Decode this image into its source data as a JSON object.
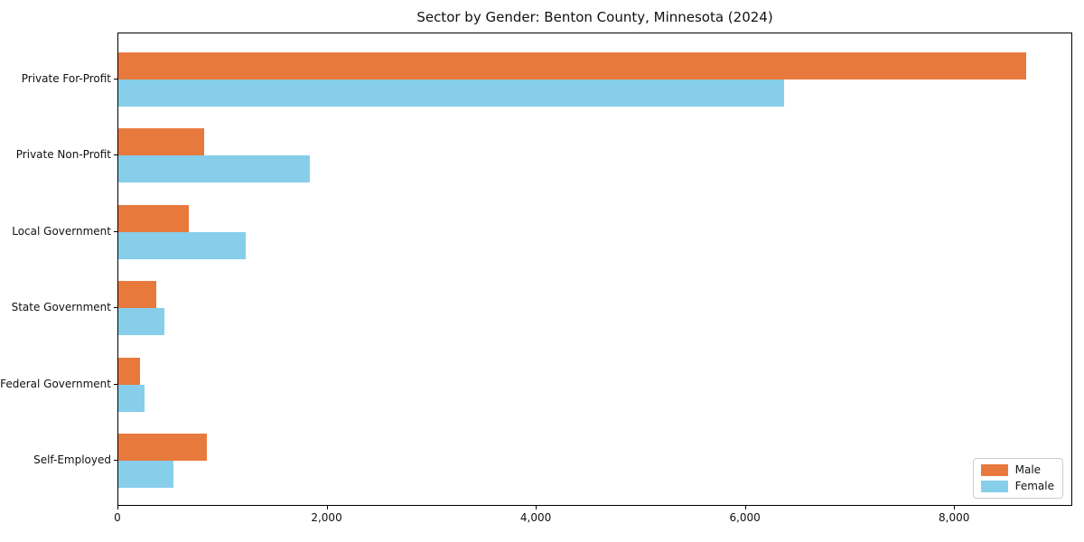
{
  "title": "Sector by Gender: Benton County, Minnesota (2024)",
  "colors": {
    "male": "#e8793d",
    "female": "#87ceeb",
    "spine": "#000000",
    "legend_border": "#cccccc",
    "background": "#ffffff"
  },
  "chart_data": {
    "type": "bar",
    "orientation": "horizontal",
    "title": "Sector by Gender: Benton County, Minnesota (2024)",
    "categories": [
      "Private For-Profit",
      "Private Non-Profit",
      "Local Government",
      "State Government",
      "Federal Government",
      "Self-Employed"
    ],
    "series": [
      {
        "name": "Male",
        "color": "#e8793d",
        "values": [
          8685,
          820,
          670,
          360,
          205,
          850
        ]
      },
      {
        "name": "Female",
        "color": "#87ceeb",
        "values": [
          6370,
          1830,
          1215,
          440,
          250,
          530
        ]
      }
    ],
    "xlabel": "",
    "ylabel": "",
    "xlim": [
      0,
      9130
    ],
    "xticks": [
      0,
      2000,
      4000,
      6000,
      8000
    ],
    "xtick_labels": [
      "0",
      "2,000",
      "4,000",
      "6,000",
      "8,000"
    ],
    "grid": false,
    "legend": {
      "position": "lower right",
      "entries": [
        "Male",
        "Female"
      ]
    }
  }
}
